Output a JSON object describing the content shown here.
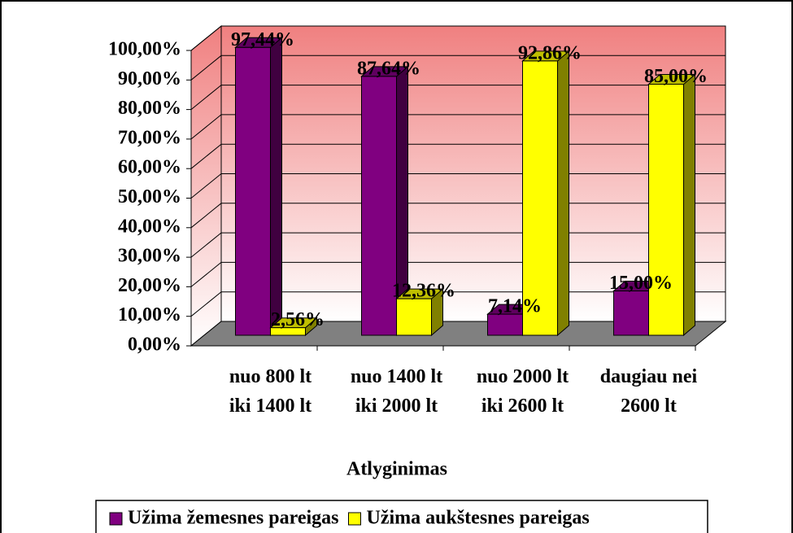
{
  "chart_data": {
    "type": "bar3d",
    "categories": [
      "nuo 800 lt\niki 1400 lt",
      "nuo 1400 lt\niki 2000 lt",
      "nuo 2000 lt\niki 2600 lt",
      "daugiau nei\n2600 lt"
    ],
    "series": [
      {
        "name": "Užima žemesnes pareigas",
        "color": "#800080",
        "values": [
          97.44,
          87.64,
          7.14,
          15
        ],
        "value_labels": [
          "97,44%",
          "87,64%",
          "7,14%",
          "15,00%"
        ]
      },
      {
        "name": "Užima aukštesnes pareigas",
        "color": "#ffff00",
        "values": [
          2.56,
          12.36,
          92.86,
          85
        ],
        "value_labels": [
          "2,56%",
          "12,36%",
          "92,86%",
          "85,00%"
        ]
      }
    ],
    "xlabel": "Atlyginimas",
    "ylim": [
      0,
      100
    ],
    "yticks": [
      {
        "value": 0,
        "label": "0,00%"
      },
      {
        "value": 10,
        "label": "10,00%"
      },
      {
        "value": 20,
        "label": "20,00%"
      },
      {
        "value": 30,
        "label": "30,00%"
      },
      {
        "value": 40,
        "label": "40,00%"
      },
      {
        "value": 50,
        "label": "50,00%"
      },
      {
        "value": 60,
        "label": "60,00%"
      },
      {
        "value": 70,
        "label": "70,00%"
      },
      {
        "value": 80,
        "label": "80,00%"
      },
      {
        "value": 90,
        "label": "90,00%"
      },
      {
        "value": 100,
        "label": "100,00%"
      }
    ],
    "grid": true,
    "legend": "bottom"
  }
}
